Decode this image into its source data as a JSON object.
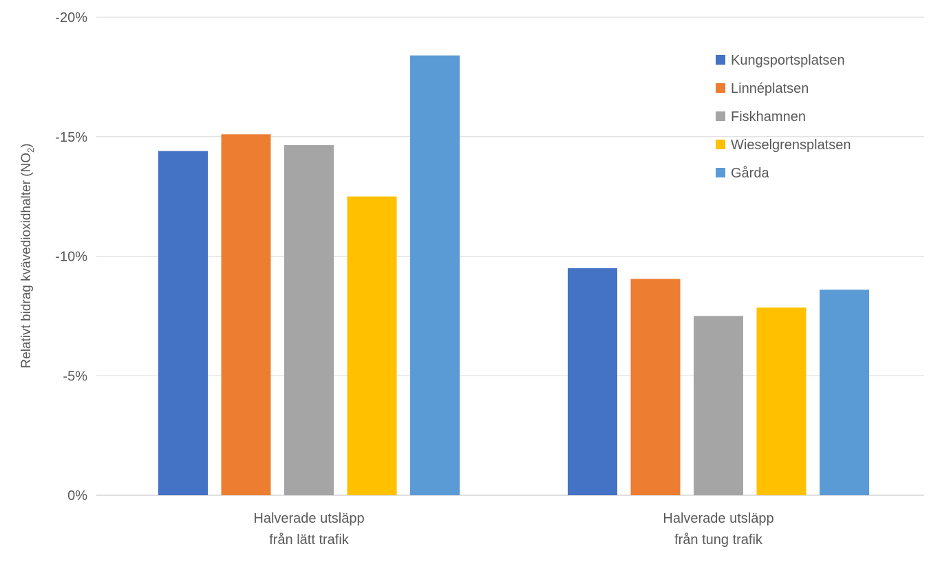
{
  "chart_data": {
    "type": "bar",
    "title": "",
    "ylabel": {
      "main": "Relativt bidrag kvävedioxidhalter (NO",
      "subscript": "2",
      "close": ")"
    },
    "xlabel": "",
    "categories": [
      [
        "Halverade utsläpp",
        "från lätt trafik"
      ],
      [
        "Halverade utsläpp",
        "från tung trafik"
      ]
    ],
    "ylim": [
      0,
      -20
    ],
    "y_ticks": [
      0,
      -5,
      -10,
      -15,
      -20
    ],
    "y_tick_labels": [
      "0%",
      "-5%",
      "-10%",
      "-15%",
      "-20%"
    ],
    "y_axis_reversed": true,
    "grid": true,
    "legend_position": "top-right",
    "series": [
      {
        "name": "Kungsportsplatsen",
        "color": "#4472C4",
        "values": [
          -14.4,
          -9.5
        ]
      },
      {
        "name": "Linnéplatsen",
        "color": "#ED7D31",
        "values": [
          -15.1,
          -9.05
        ]
      },
      {
        "name": "Fiskhamnen",
        "color": "#A5A5A5",
        "values": [
          -14.65,
          -7.5
        ]
      },
      {
        "name": "Wieselgrensplatsen",
        "color": "#FFC000",
        "values": [
          -12.5,
          -7.85
        ]
      },
      {
        "name": "Gårda",
        "color": "#5B9BD5",
        "values": [
          -18.4,
          -8.6
        ]
      }
    ]
  }
}
